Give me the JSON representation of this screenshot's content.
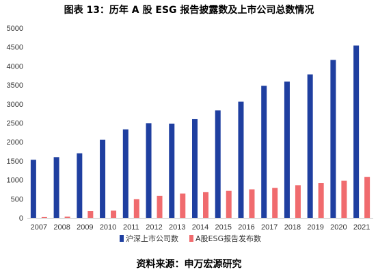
{
  "title": "图表 13：历年 A 股 ESG 报告披露数及上市公司总数情况",
  "source": "资料来源：申万宏源研究",
  "chart_data": {
    "type": "bar",
    "categories": [
      "2007",
      "2008",
      "2009",
      "2010",
      "2011",
      "2012",
      "2013",
      "2014",
      "2015",
      "2016",
      "2017",
      "2018",
      "2019",
      "2020",
      "2021"
    ],
    "series": [
      {
        "name": "沪深上市公司数",
        "color": "#1f3fa0",
        "values": [
          1530,
          1600,
          1700,
          2060,
          2330,
          2490,
          2480,
          2600,
          2830,
          3060,
          3480,
          3590,
          3780,
          4160,
          4540
        ]
      },
      {
        "name": "A股ESG报告发布数",
        "color": "#f06b6e",
        "values": [
          20,
          30,
          180,
          190,
          490,
          580,
          640,
          680,
          710,
          750,
          790,
          860,
          920,
          980,
          1080
        ]
      }
    ],
    "ylim": [
      0,
      5000
    ],
    "yticks": [
      0,
      500,
      1000,
      1500,
      2000,
      2500,
      3000,
      3500,
      4000,
      4500,
      5000
    ],
    "grid": false,
    "legend": "bottom"
  }
}
